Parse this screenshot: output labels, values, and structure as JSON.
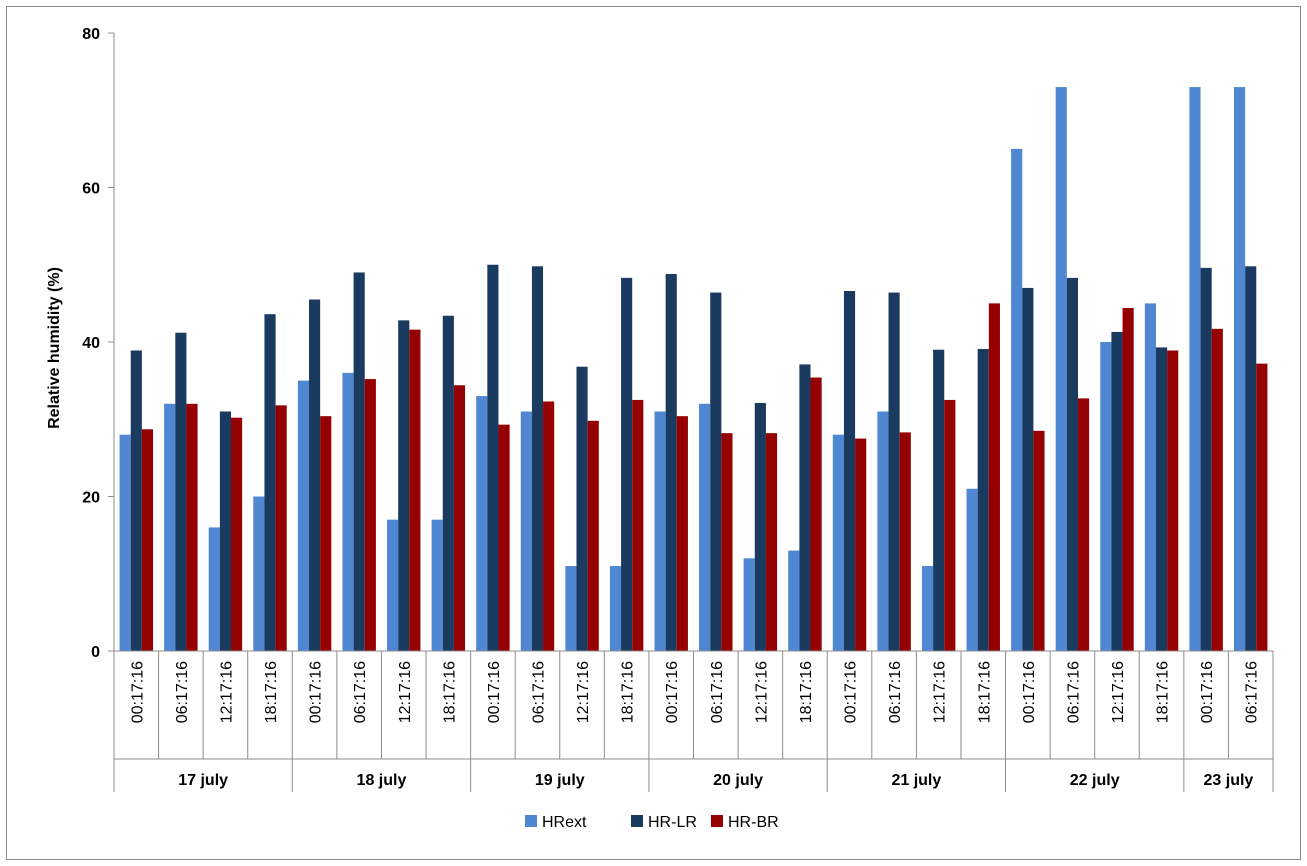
{
  "chart_data": {
    "type": "bar",
    "ylabel": "Relative humidity (%)",
    "xlabel": "",
    "ylim": [
      0,
      80
    ],
    "yticks": [
      "0",
      "20",
      "40",
      "60",
      "80"
    ],
    "categories": [
      "00:17:16",
      "06:17:16",
      "12:17:16",
      "18:17:16",
      "00:17:16",
      "06:17:16",
      "12:17:16",
      "18:17:16",
      "00:17:16",
      "06:17:16",
      "12:17:16",
      "18:17:16",
      "00:17:16",
      "06:17:16",
      "12:17:16",
      "18:17:16",
      "00:17:16",
      "06:17:16",
      "12:17:16",
      "18:17:16",
      "00:17:16",
      "06:17:16",
      "12:17:16",
      "18:17:16",
      "00:17:16",
      "06:17:16"
    ],
    "groups": [
      {
        "label": "17 july",
        "count": 4
      },
      {
        "label": "18 july",
        "count": 4
      },
      {
        "label": "19 july",
        "count": 4
      },
      {
        "label": "20 july",
        "count": 4
      },
      {
        "label": "21 july",
        "count": 4
      },
      {
        "label": "22 july",
        "count": 4
      },
      {
        "label": "23 july",
        "count": 2
      }
    ],
    "series": [
      {
        "name": "HRext",
        "color": "#4f87d2",
        "values": [
          28,
          32,
          16,
          20,
          35,
          36,
          17,
          17,
          33,
          31,
          11,
          11,
          31,
          32,
          12,
          13,
          28,
          31,
          11,
          21,
          65,
          73,
          40,
          45,
          73,
          73
        ]
      },
      {
        "name": "HR-LR",
        "color": "#1b3a5f",
        "values": [
          38.9,
          41.2,
          31,
          43.6,
          45.5,
          49,
          42.8,
          43.4,
          50,
          49.8,
          36.8,
          48.3,
          48.8,
          46.4,
          32.1,
          37.1,
          46.6,
          46.4,
          39,
          39.1,
          47,
          48.3,
          41.3,
          39.3,
          49.6,
          49.8
        ]
      },
      {
        "name": "HR-BR",
        "color": "#950000",
        "values": [
          28.7,
          32,
          30.2,
          31.8,
          30.4,
          35.2,
          41.6,
          34.4,
          29.3,
          32.3,
          29.8,
          32.5,
          30.4,
          28.2,
          28.2,
          35.4,
          27.5,
          28.3,
          32.5,
          45,
          28.5,
          32.7,
          44.4,
          38.9,
          41.7,
          37.2
        ]
      }
    ],
    "grid": false,
    "legend": "bottom"
  }
}
